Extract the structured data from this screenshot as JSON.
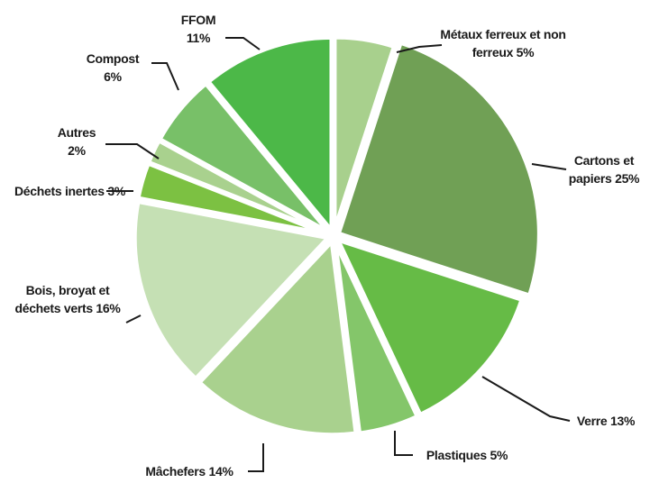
{
  "chart_data": {
    "type": "pie",
    "categories": [
      "Métaux ferreux et non ferreux",
      "Cartons et papiers",
      "Verre",
      "Plastiques",
      "Mâchefers",
      "Bois, broyat et déchets verts",
      "Déchets inertes",
      "Autres",
      "Compost",
      "FFOM"
    ],
    "values": [
      5,
      25,
      13,
      5,
      14,
      16,
      3,
      2,
      6,
      11
    ],
    "value_labels": [
      "5%",
      "25%",
      "13%",
      "5%",
      "14%",
      "16%",
      "3%",
      "2%",
      "6%",
      "11%"
    ],
    "colors": [
      "#a8d08d",
      "#70a055",
      "#66bb46",
      "#84c66a",
      "#a9d18e",
      "#c5e0b4",
      "#7cc142",
      "#a9d18e",
      "#78c068",
      "#4cb848"
    ]
  }
}
